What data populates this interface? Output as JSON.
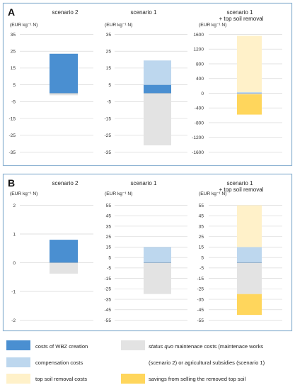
{
  "chart_data": [
    {
      "type": "bar",
      "panel_label": "A",
      "panels": [
        {
          "title": "scenario 2",
          "unit_label": "(EUR kg⁻¹ N)",
          "ylim": [
            -35,
            35
          ],
          "ticks": [
            "35",
            "25",
            "15",
            "5",
            "-5",
            "-15",
            "-25",
            "-35"
          ],
          "segments": [
            {
              "series": "costs of WBZ creation",
              "from": 0,
              "to": 23.5
            },
            {
              "series": "status quo maintenace costs",
              "from": 0,
              "to": -1.2
            }
          ]
        },
        {
          "title": "scenario 1",
          "unit_label": "(EUR kg⁻¹ N)",
          "ylim": [
            -35,
            35
          ],
          "ticks": [
            "35",
            "25",
            "15",
            "5",
            "-5",
            "-15",
            "-25",
            "-35"
          ],
          "segments": [
            {
              "series": "costs of WBZ creation",
              "from": 0,
              "to": 5
            },
            {
              "series": "compensation costs",
              "from": 5,
              "to": 19.5
            },
            {
              "series": "status quo maintenace costs",
              "from": 0,
              "to": -31
            }
          ]
        },
        {
          "title": "scenario 1",
          "title2": "+ top soil removal",
          "unit_label": "(EUR kg⁻¹ N)",
          "ylim": [
            -1600,
            1600
          ],
          "ticks": [
            "1600",
            "1200",
            "800",
            "400",
            "0",
            "-400",
            "-800",
            "-1200",
            "-1600"
          ],
          "segments": [
            {
              "series": "costs of WBZ creation",
              "from": 0,
              "to": 8
            },
            {
              "series": "compensation costs",
              "from": 8,
              "to": 30
            },
            {
              "series": "top soil removal costs",
              "from": 30,
              "to": 1560
            },
            {
              "series": "status quo maintenace costs",
              "from": 0,
              "to": -30
            },
            {
              "series": "savings from selling the removed top soil",
              "from": -30,
              "to": -580
            }
          ]
        }
      ]
    },
    {
      "type": "bar",
      "panel_label": "B",
      "panels": [
        {
          "title": "scenario 2",
          "unit_label": "(EUR kg⁻¹ N)",
          "ylim": [
            -2,
            2
          ],
          "ticks": [
            "2",
            "1",
            "0",
            "-1",
            "-2"
          ],
          "segments": [
            {
              "series": "costs of WBZ creation",
              "from": 0,
              "to": 0.8
            },
            {
              "series": "status quo maintenace costs",
              "from": 0,
              "to": -0.38
            }
          ]
        },
        {
          "title": "scenario 1",
          "unit_label": "(EUR kg⁻¹ N)",
          "ylim": [
            -55,
            55
          ],
          "ticks": [
            "55",
            "45",
            "35",
            "25",
            "15",
            "5",
            "-5",
            "-15",
            "-25",
            "-35",
            "-45",
            "-55"
          ],
          "segments": [
            {
              "series": "costs of WBZ creation",
              "from": 0,
              "to": 0.5
            },
            {
              "series": "compensation costs",
              "from": 0.5,
              "to": 15
            },
            {
              "series": "status quo maintenace costs",
              "from": 0,
              "to": -30
            }
          ]
        },
        {
          "title": "scenario 1",
          "title2": "+ top soil removal",
          "unit_label": "(EUR kg⁻¹ N)",
          "ylim": [
            -55,
            55
          ],
          "ticks": [
            "55",
            "45",
            "35",
            "25",
            "15",
            "5",
            "-5",
            "-15",
            "-25",
            "-35",
            "-45",
            "-55"
          ],
          "segments": [
            {
              "series": "costs of WBZ creation",
              "from": 0,
              "to": 0.5
            },
            {
              "series": "compensation costs",
              "from": 0.5,
              "to": 15
            },
            {
              "series": "top soil removal costs",
              "from": 15,
              "to": 55
            },
            {
              "series": "status quo maintenace costs",
              "from": 0,
              "to": -30
            },
            {
              "series": "savings from selling the removed top soil",
              "from": -30,
              "to": -50
            }
          ]
        }
      ]
    }
  ],
  "colors": {
    "costs of WBZ creation": "#4a8fd1",
    "compensation costs": "#bdd7ee",
    "top soil removal costs": "#fff1c9",
    "status quo maintenace costs": "#e3e3e3",
    "savings from selling the removed top soil": "#ffd65c",
    "frame": "#8fb3d3",
    "grid": "#d9d9d9"
  },
  "legend": {
    "wbz": "costs of WBZ creation",
    "comp": "compensation costs",
    "topsoil": "top soil removal costs",
    "sq_italic": "status quo",
    "sq_rest": " maintenace costs (maintenace works",
    "sq_line2": "(scenario 2) or agricultural subsidies (scenario 1)",
    "savings": "savings from selling the removed top soil"
  }
}
